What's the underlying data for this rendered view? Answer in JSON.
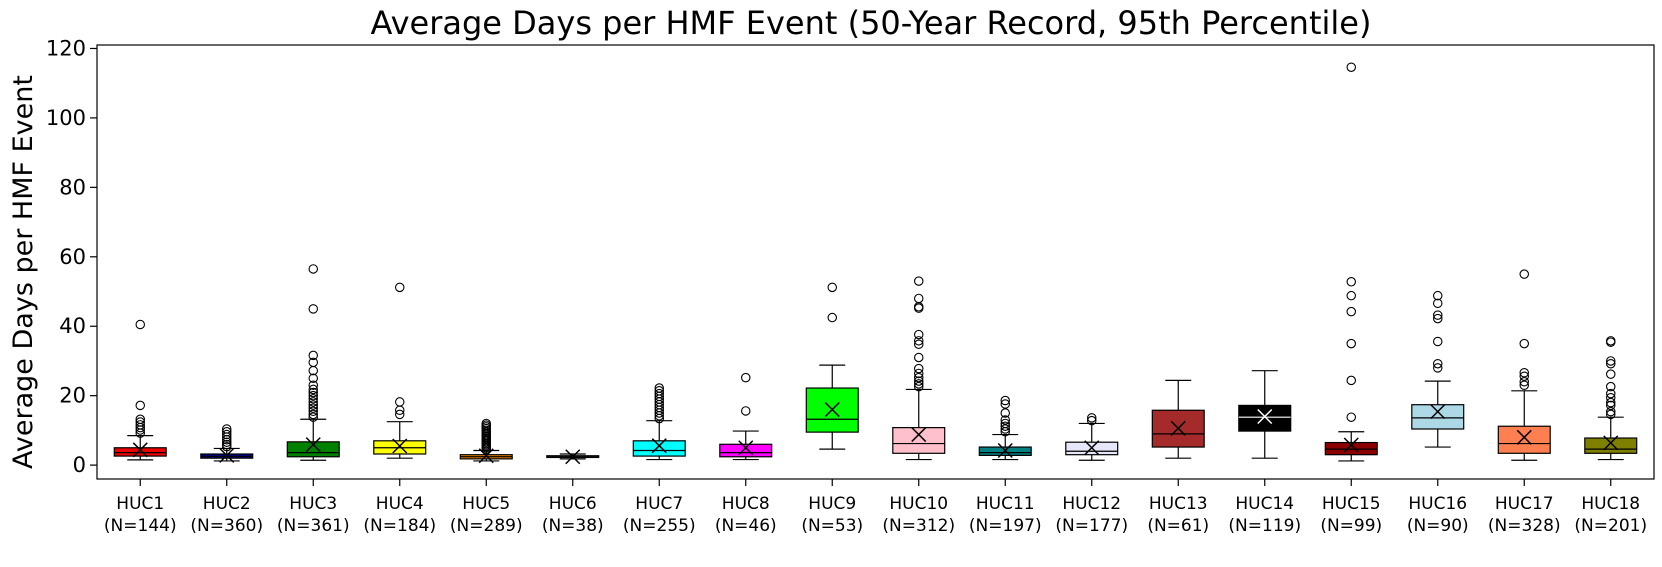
{
  "chart_data": {
    "type": "box",
    "title": "Average Days per HMF Event (50-Year Record, 95th Percentile)",
    "xlabel": "",
    "ylabel": "Average Days per HMF Event",
    "ylim": [
      -4,
      121
    ],
    "yticks": [
      0,
      20,
      40,
      60,
      80,
      100,
      120
    ],
    "grid": false,
    "mean_marker": "x",
    "categories": [
      {
        "name": "HUC1",
        "n": "(N=144)",
        "color": "#ee0000",
        "whislo": 1.5,
        "q1": 2.6,
        "median": 3.6,
        "q3": 5.0,
        "whishi": 8.5,
        "mean": 4.4,
        "fliers": [
          9.2,
          10.1,
          10.8,
          11.6,
          12.4,
          13.2,
          17.2,
          40.5
        ]
      },
      {
        "name": "HUC2",
        "n": "(N=360)",
        "color": "#000080",
        "whislo": 1.2,
        "q1": 2.0,
        "median": 2.5,
        "q3": 3.2,
        "whishi": 4.8,
        "mean": 2.8,
        "fliers": [
          5.3,
          5.9,
          6.6,
          7.3,
          8.1,
          8.8,
          9.6,
          10.4
        ]
      },
      {
        "name": "HUC3",
        "n": "(N=361)",
        "color": "#008000",
        "whislo": 1.4,
        "q1": 2.4,
        "median": 3.6,
        "q3": 6.7,
        "whishi": 13.2,
        "mean": 5.9,
        "fliers": [
          13.8,
          14.6,
          15.5,
          16.4,
          17.3,
          18.2,
          19.1,
          20.0,
          20.9,
          21.8,
          23.0,
          25.0,
          27.2,
          29.6,
          31.6,
          45.0,
          56.5
        ]
      },
      {
        "name": "HUC4",
        "n": "(N=184)",
        "color": "#ffff00",
        "whislo": 2.0,
        "q1": 3.2,
        "median": 5.0,
        "q3": 7.0,
        "whishi": 12.5,
        "mean": 5.5,
        "fliers": [
          14.6,
          15.8,
          18.2,
          51.2
        ]
      },
      {
        "name": "HUC5",
        "n": "(N=289)",
        "color": "#ff8c00",
        "whislo": 1.2,
        "q1": 1.8,
        "median": 2.4,
        "q3": 3.0,
        "whishi": 4.2,
        "mean": 2.7,
        "fliers": [
          4.6,
          5.0,
          5.4,
          5.8,
          6.2,
          6.6,
          7.0,
          7.4,
          7.8,
          8.2,
          8.6,
          9.0,
          9.5,
          10.0,
          10.5,
          11.0,
          11.5,
          12.0
        ]
      },
      {
        "name": "HUC6",
        "n": "(N=38)",
        "color": "#ffffff",
        "whislo": 1.8,
        "q1": 2.2,
        "median": 2.4,
        "q3": 2.7,
        "whishi": 3.2,
        "mean": 2.4,
        "fliers": []
      },
      {
        "name": "HUC7",
        "n": "(N=255)",
        "color": "#00ffff",
        "whislo": 1.6,
        "q1": 2.6,
        "median": 4.2,
        "q3": 7.0,
        "whishi": 12.8,
        "mean": 5.6,
        "fliers": [
          13.4,
          14.2,
          15.0,
          15.8,
          16.6,
          17.4,
          18.2,
          19.0,
          19.8,
          20.6,
          21.4,
          22.2
        ]
      },
      {
        "name": "HUC8",
        "n": "(N=46)",
        "color": "#ff00ff",
        "whislo": 1.6,
        "q1": 2.4,
        "median": 3.6,
        "q3": 6.0,
        "whishi": 9.8,
        "mean": 5.0,
        "fliers": [
          15.6,
          25.2
        ]
      },
      {
        "name": "HUC9",
        "n": "(N=53)",
        "color": "#00ff00",
        "whislo": 4.6,
        "q1": 9.5,
        "median": 13.2,
        "q3": 22.2,
        "whishi": 28.8,
        "mean": 16.0,
        "fliers": [
          42.5,
          51.2
        ]
      },
      {
        "name": "HUC10",
        "n": "(N=312)",
        "color": "#ffc0cb",
        "whislo": 1.6,
        "q1": 3.4,
        "median": 6.2,
        "q3": 10.8,
        "whishi": 21.8,
        "mean": 8.8,
        "fliers": [
          22.6,
          23.4,
          24.2,
          25.2,
          26.4,
          27.8,
          31.0,
          34.8,
          35.8,
          37.6,
          45.2,
          45.6,
          48.0,
          53.0
        ]
      },
      {
        "name": "HUC11",
        "n": "(N=197)",
        "color": "#008080",
        "whislo": 1.6,
        "q1": 2.8,
        "median": 3.6,
        "q3": 5.2,
        "whishi": 8.8,
        "mean": 4.2,
        "fliers": [
          9.6,
          10.4,
          11.2,
          12.0,
          13.0,
          15.0,
          17.6,
          18.6
        ]
      },
      {
        "name": "HUC12",
        "n": "(N=177)",
        "color": "#e6e6fa",
        "whislo": 1.4,
        "q1": 3.0,
        "median": 4.0,
        "q3": 6.6,
        "whishi": 12.0,
        "mean": 5.0,
        "fliers": [
          12.8,
          13.6
        ]
      },
      {
        "name": "HUC13",
        "n": "(N=61)",
        "color": "#a52a2a",
        "whislo": 2.0,
        "q1": 5.2,
        "median": 9.0,
        "q3": 15.8,
        "whishi": 24.4,
        "mean": 10.6,
        "fliers": []
      },
      {
        "name": "HUC14",
        "n": "(N=119)",
        "color": "#000000",
        "whislo": 2.0,
        "q1": 9.8,
        "median": 13.8,
        "q3": 17.2,
        "whishi": 27.2,
        "mean": 14.0,
        "fliers": []
      },
      {
        "name": "HUC15",
        "n": "(N=99)",
        "color": "#8b0000",
        "whislo": 1.2,
        "q1": 3.0,
        "median": 4.6,
        "q3": 6.5,
        "whishi": 9.6,
        "mean": 5.8,
        "fliers": [
          13.8,
          24.4,
          35.0,
          44.2,
          48.8,
          52.8,
          114.6
        ]
      },
      {
        "name": "HUC16",
        "n": "(N=90)",
        "color": "#add8e6",
        "whislo": 5.2,
        "q1": 10.4,
        "median": 13.6,
        "q3": 17.4,
        "whishi": 24.2,
        "mean": 15.4,
        "fliers": [
          28.0,
          29.2,
          35.6,
          42.2,
          43.2,
          46.6,
          48.8
        ]
      },
      {
        "name": "HUC17",
        "n": "(N=328)",
        "color": "#ff7f50",
        "whislo": 1.4,
        "q1": 3.4,
        "median": 6.2,
        "q3": 11.2,
        "whishi": 21.4,
        "mean": 8.0,
        "fliers": [
          23.0,
          24.0,
          25.6,
          26.6,
          35.0,
          55.0
        ]
      },
      {
        "name": "HUC18",
        "n": "(N=201)",
        "color": "#808000",
        "whislo": 1.6,
        "q1": 3.4,
        "median": 4.6,
        "q3": 7.8,
        "whishi": 13.8,
        "mean": 6.4,
        "fliers": [
          14.6,
          15.4,
          17.2,
          18.0,
          19.4,
          20.6,
          22.6,
          26.2,
          29.2,
          30.0,
          35.4,
          35.8
        ]
      }
    ]
  }
}
